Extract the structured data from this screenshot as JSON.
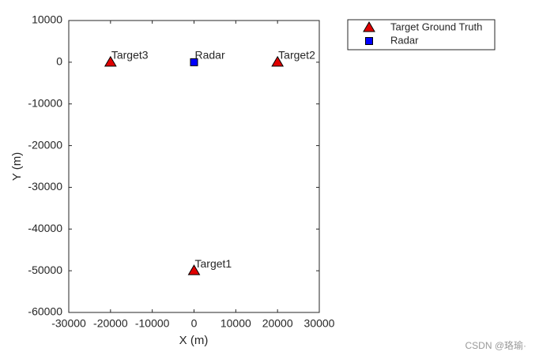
{
  "chart_data": {
    "type": "scatter",
    "xlabel": "X (m)",
    "ylabel": "Y (m)",
    "xlim": [
      -30000,
      30000
    ],
    "xticks": [
      -30000,
      -20000,
      -10000,
      0,
      10000,
      20000,
      30000
    ],
    "ylim": [
      -60000,
      10000
    ],
    "yticks": [
      -60000,
      -50000,
      -40000,
      -30000,
      -20000,
      -10000,
      0,
      10000
    ],
    "legend": "outside-top-right",
    "series": [
      {
        "name": "Target Ground Truth",
        "marker": "triangle",
        "color": "#e00000",
        "x": [
          0,
          20000,
          -20000
        ],
        "values": [
          -50000,
          0,
          0
        ],
        "labels": [
          "Target1",
          "Target2",
          "Target3"
        ]
      },
      {
        "name": "Radar",
        "marker": "square",
        "color": "#0000ff",
        "x": [
          0
        ],
        "values": [
          0
        ],
        "labels": [
          "Radar"
        ]
      }
    ]
  },
  "watermark": "CSDN @珞瑜·"
}
